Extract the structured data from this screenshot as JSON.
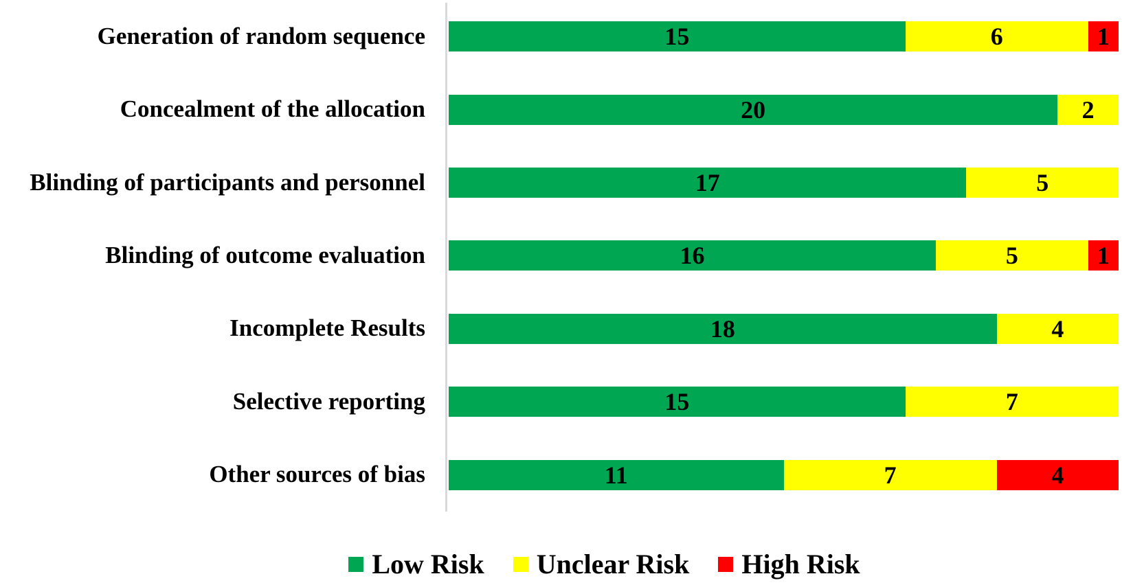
{
  "chart_data": {
    "type": "bar",
    "orientation": "horizontal",
    "stacked": true,
    "title": "",
    "xlabel": "",
    "ylabel": "",
    "categories": [
      "Generation of random sequence",
      "Concealment of the allocation",
      "Blinding of participants and personnel",
      "Blinding of outcome evaluation",
      "Incomplete Results",
      "Selective reporting",
      "Other sources of bias"
    ],
    "series": [
      {
        "name": "Low Risk",
        "color": "#00A651",
        "values": [
          15,
          20,
          17,
          16,
          18,
          15,
          11
        ]
      },
      {
        "name": "Unclear Risk",
        "color": "#FFFF00",
        "values": [
          6,
          2,
          5,
          5,
          4,
          7,
          7
        ]
      },
      {
        "name": "High Risk",
        "color": "#FF0000",
        "values": [
          1,
          0,
          0,
          1,
          0,
          0,
          4
        ]
      }
    ],
    "row_totals": [
      22,
      22,
      22,
      22,
      22,
      22,
      22
    ],
    "xlim": [
      0,
      22
    ],
    "data_labels": "inside-center",
    "data_label_color": "#000000",
    "grid": false,
    "legend_position": "bottom",
    "axis_line_color": "#D9D9D9",
    "background": "#FFFFFF"
  },
  "legend": {
    "items": [
      {
        "label": "Low Risk",
        "color": "#00A651"
      },
      {
        "label": "Unclear Risk",
        "color": "#FFFF00"
      },
      {
        "label": "High Risk",
        "color": "#FF0000"
      }
    ]
  }
}
